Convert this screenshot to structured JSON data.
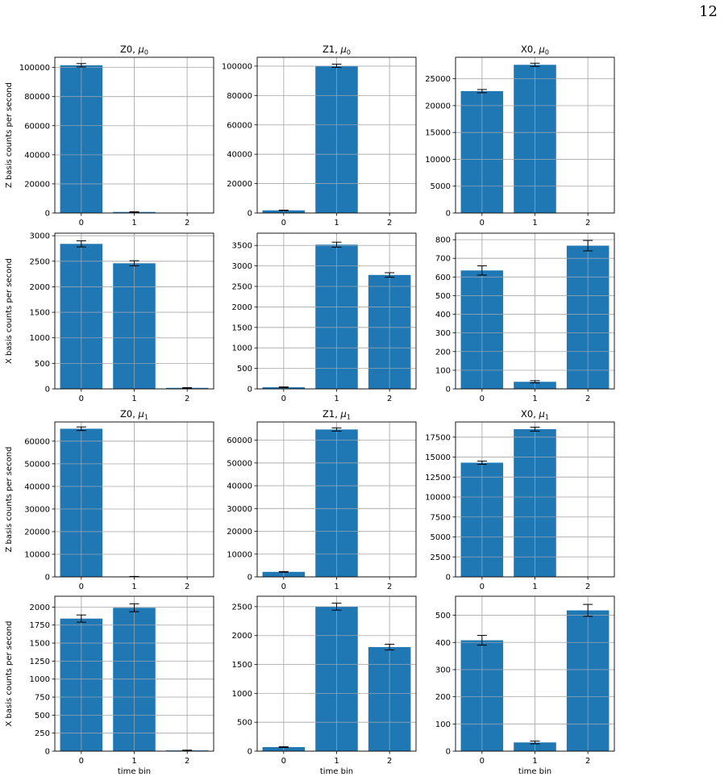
{
  "page": {
    "number": "12"
  },
  "colors": {
    "bar": "#1f77b4",
    "grid": "#b0b0b0",
    "errorbar": "#000000"
  },
  "chart_data": [
    {
      "type": "bar",
      "title_main": "Z0, ",
      "title_mu": "μ",
      "title_sub": "0",
      "categories": [
        "0",
        "1",
        "2"
      ],
      "values": [
        101500,
        700,
        0
      ],
      "errors": [
        1200,
        150,
        0
      ],
      "ylim": [
        0,
        107000
      ],
      "yticks": [
        0,
        20000,
        40000,
        60000,
        80000,
        100000
      ],
      "ylabel": "Z basis counts per second",
      "xlabel": "",
      "grid": true
    },
    {
      "type": "bar",
      "title_main": "Z1, ",
      "title_mu": "μ",
      "title_sub": "0",
      "categories": [
        "0",
        "1",
        "2"
      ],
      "values": [
        1800,
        100200,
        0
      ],
      "errors": [
        150,
        1100,
        0
      ],
      "ylim": [
        0,
        106000
      ],
      "yticks": [
        0,
        20000,
        40000,
        60000,
        80000,
        100000
      ],
      "ylabel": "",
      "xlabel": "",
      "grid": true
    },
    {
      "type": "bar",
      "title_main": "X0, ",
      "title_mu": "μ",
      "title_sub": "0",
      "categories": [
        "0",
        "1",
        "2"
      ],
      "values": [
        22700,
        27600,
        0
      ],
      "errors": [
        300,
        300,
        0
      ],
      "ylim": [
        0,
        29000
      ],
      "yticks": [
        0,
        5000,
        10000,
        15000,
        20000,
        25000
      ],
      "ylabel": "",
      "xlabel": "",
      "grid": true
    },
    {
      "type": "bar",
      "title_main": "",
      "title_mu": "",
      "title_sub": "",
      "categories": [
        "0",
        "1",
        "2"
      ],
      "values": [
        2840,
        2460,
        20
      ],
      "errors": [
        60,
        50,
        5
      ],
      "ylim": [
        0,
        3050
      ],
      "yticks": [
        0,
        500,
        1000,
        1500,
        2000,
        2500,
        3000
      ],
      "ylabel": "X basis counts per second",
      "xlabel": "",
      "grid": true
    },
    {
      "type": "bar",
      "title_main": "",
      "title_mu": "",
      "title_sub": "",
      "categories": [
        "0",
        "1",
        "2"
      ],
      "values": [
        40,
        3520,
        2780
      ],
      "errors": [
        8,
        60,
        55
      ],
      "ylim": [
        0,
        3800
      ],
      "yticks": [
        0,
        500,
        1000,
        1500,
        2000,
        2500,
        3000,
        3500
      ],
      "ylabel": "",
      "xlabel": "",
      "grid": true
    },
    {
      "type": "bar",
      "title_main": "",
      "title_mu": "",
      "title_sub": "",
      "categories": [
        "0",
        "1",
        "2"
      ],
      "values": [
        635,
        38,
        768
      ],
      "errors": [
        25,
        6,
        28
      ],
      "ylim": [
        0,
        835
      ],
      "yticks": [
        0,
        100,
        200,
        300,
        400,
        500,
        600,
        700,
        800
      ],
      "ylabel": "",
      "xlabel": "",
      "grid": true
    },
    {
      "type": "bar",
      "title_main": "Z0, ",
      "title_mu": "μ",
      "title_sub": "1",
      "categories": [
        "0",
        "1",
        "2"
      ],
      "values": [
        65500,
        150,
        0
      ],
      "errors": [
        800,
        50,
        0
      ],
      "ylim": [
        0,
        68500
      ],
      "yticks": [
        0,
        10000,
        20000,
        30000,
        40000,
        50000,
        60000
      ],
      "ylabel": "Z basis counts per second",
      "xlabel": "",
      "grid": true
    },
    {
      "type": "bar",
      "title_main": "Z1, ",
      "title_mu": "μ",
      "title_sub": "1",
      "categories": [
        "0",
        "1",
        "2"
      ],
      "values": [
        2200,
        64700,
        0
      ],
      "errors": [
        150,
        700,
        0
      ],
      "ylim": [
        0,
        68000
      ],
      "yticks": [
        0,
        10000,
        20000,
        30000,
        40000,
        50000,
        60000
      ],
      "ylabel": "",
      "xlabel": "",
      "grid": true
    },
    {
      "type": "bar",
      "title_main": "X0, ",
      "title_mu": "μ",
      "title_sub": "1",
      "categories": [
        "0",
        "1",
        "2"
      ],
      "values": [
        14300,
        18500,
        0
      ],
      "errors": [
        200,
        250,
        0
      ],
      "ylim": [
        0,
        19400
      ],
      "yticks": [
        0,
        2500,
        5000,
        7500,
        10000,
        12500,
        15000,
        17500
      ],
      "ylabel": "",
      "xlabel": "",
      "grid": true
    },
    {
      "type": "bar",
      "title_main": "",
      "title_mu": "",
      "title_sub": "",
      "categories": [
        "0",
        "1",
        "2"
      ],
      "values": [
        1840,
        1990,
        10
      ],
      "errors": [
        50,
        55,
        4
      ],
      "ylim": [
        0,
        2150
      ],
      "yticks": [
        0,
        250,
        500,
        750,
        1000,
        1250,
        1500,
        1750,
        2000
      ],
      "ylabel": "X basis counts per second",
      "xlabel": "time bin",
      "grid": true
    },
    {
      "type": "bar",
      "title_main": "",
      "title_mu": "",
      "title_sub": "",
      "categories": [
        "0",
        "1",
        "2"
      ],
      "values": [
        70,
        2500,
        1800
      ],
      "errors": [
        8,
        60,
        50
      ],
      "ylim": [
        0,
        2680
      ],
      "yticks": [
        0,
        500,
        1000,
        1500,
        2000,
        2500
      ],
      "ylabel": "",
      "xlabel": "time bin",
      "grid": true
    },
    {
      "type": "bar",
      "title_main": "",
      "title_mu": "",
      "title_sub": "",
      "categories": [
        "0",
        "1",
        "2"
      ],
      "values": [
        408,
        32,
        518
      ],
      "errors": [
        18,
        5,
        22
      ],
      "ylim": [
        0,
        570
      ],
      "yticks": [
        0,
        100,
        200,
        300,
        400,
        500
      ],
      "ylabel": "",
      "xlabel": "time bin",
      "grid": true
    }
  ]
}
